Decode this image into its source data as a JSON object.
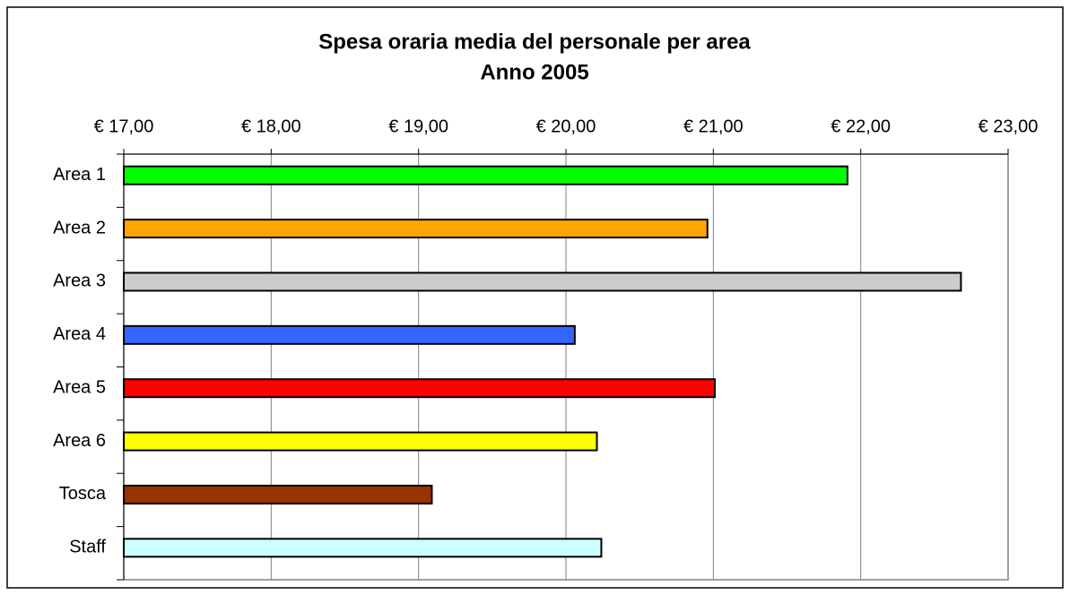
{
  "chart_data": {
    "type": "bar",
    "orientation": "horizontal",
    "title": "Spesa oraria media del personale per area",
    "subtitle": "Anno 2005",
    "categories": [
      "Area 1",
      "Area 2",
      "Area 3",
      "Area 4",
      "Area 5",
      "Area 6",
      "Tosca",
      "Staff"
    ],
    "values": [
      21.91,
      20.96,
      22.68,
      20.06,
      21.01,
      20.21,
      19.09,
      20.24
    ],
    "colors": [
      "#00ff00",
      "#ffa500",
      "#cccccc",
      "#3366ff",
      "#ff0000",
      "#ffff00",
      "#993300",
      "#ccffff"
    ],
    "xlim": [
      17,
      23
    ],
    "xticks": [
      {
        "value": 17,
        "label": "€ 17,00"
      },
      {
        "value": 18,
        "label": "€ 18,00"
      },
      {
        "value": 19,
        "label": "€ 19,00"
      },
      {
        "value": 20,
        "label": "€ 20,00"
      },
      {
        "value": 21,
        "label": "€ 21,00"
      },
      {
        "value": 22,
        "label": "€ 22,00"
      },
      {
        "value": 23,
        "label": "€ 23,00"
      }
    ],
    "grid": true
  }
}
